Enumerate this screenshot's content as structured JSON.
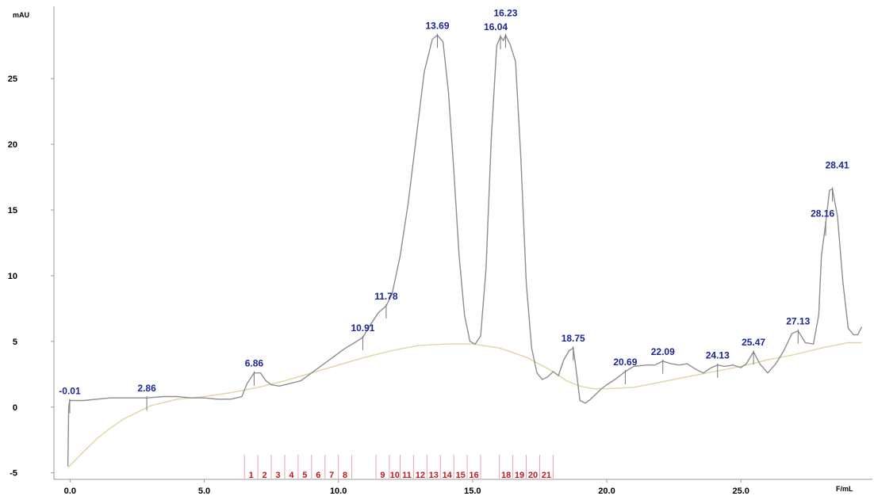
{
  "chart_data": {
    "type": "line",
    "title": "",
    "xlabel": "",
    "ylabel": "",
    "y_unit": "mAU",
    "x_unit": "F/mL",
    "xlim": [
      -0.6,
      29.9
    ],
    "ylim": [
      -5.5,
      30.5
    ],
    "x_ticks": [
      {
        "value": 0.0,
        "label": "0.0"
      },
      {
        "value": 5.0,
        "label": "5.0"
      },
      {
        "value": 10.0,
        "label": "10.0"
      },
      {
        "value": 15.0,
        "label": "15.0"
      },
      {
        "value": 20.0,
        "label": "20.0"
      },
      {
        "value": 25.0,
        "label": "25.0"
      }
    ],
    "y_ticks": [
      {
        "value": -5,
        "label": "-5"
      },
      {
        "value": 0,
        "label": "0"
      },
      {
        "value": 5,
        "label": "5"
      },
      {
        "value": 10,
        "label": "10"
      },
      {
        "value": 15,
        "label": "15"
      },
      {
        "value": 20,
        "label": "20"
      },
      {
        "value": 25,
        "label": "25"
      }
    ],
    "grid": false,
    "colors": {
      "signal": "#8e8e8e",
      "baseline": "#e2d3a4",
      "peak_label": "#1c2596",
      "fraction": "#c0181e",
      "axis": "#9a9a9a"
    },
    "series": [
      {
        "role": "signal",
        "x": [
          -0.08,
          -0.05,
          -0.01,
          0.5,
          1.0,
          1.5,
          2.0,
          2.5,
          2.86,
          3.5,
          4.0,
          4.5,
          5.0,
          5.5,
          6.0,
          6.4,
          6.6,
          6.86,
          7.1,
          7.3,
          7.5,
          7.8,
          8.2,
          8.6,
          9.0,
          9.4,
          9.8,
          10.2,
          10.6,
          10.91,
          11.2,
          11.5,
          11.78,
          12.0,
          12.3,
          12.6,
          12.9,
          13.2,
          13.5,
          13.69,
          13.9,
          14.1,
          14.3,
          14.5,
          14.7,
          14.9,
          15.1,
          15.3,
          15.5,
          15.7,
          15.9,
          16.04,
          16.15,
          16.23,
          16.4,
          16.6,
          16.8,
          17.0,
          17.2,
          17.4,
          17.6,
          17.8,
          18.0,
          18.2,
          18.4,
          18.6,
          18.75,
          18.85,
          19.0,
          19.2,
          19.4,
          19.6,
          19.8,
          20.0,
          20.3,
          20.69,
          21.0,
          21.5,
          21.8,
          22.09,
          22.4,
          22.7,
          23.0,
          23.3,
          23.6,
          23.9,
          24.13,
          24.4,
          24.7,
          25.0,
          25.2,
          25.47,
          25.7,
          26.0,
          26.3,
          26.6,
          26.9,
          27.13,
          27.4,
          27.7,
          27.9,
          28.0,
          28.16,
          28.3,
          28.41,
          28.6,
          28.8,
          29.0,
          29.2,
          29.35,
          29.5
        ],
        "values": [
          -4.5,
          0.0,
          0.5,
          0.5,
          0.6,
          0.7,
          0.7,
          0.7,
          0.7,
          0.8,
          0.8,
          0.7,
          0.7,
          0.6,
          0.6,
          0.8,
          1.8,
          2.6,
          2.6,
          2.0,
          1.7,
          1.6,
          1.8,
          2.0,
          2.6,
          3.2,
          3.8,
          4.4,
          4.9,
          5.3,
          6.3,
          7.2,
          7.7,
          8.6,
          11.5,
          15.5,
          20.5,
          25.5,
          28.0,
          28.3,
          27.8,
          24.0,
          18.0,
          11.5,
          7.0,
          5.0,
          4.8,
          5.4,
          10.5,
          20.5,
          27.5,
          28.2,
          27.9,
          28.3,
          27.6,
          26.3,
          19.0,
          9.5,
          4.5,
          2.6,
          2.1,
          2.3,
          2.7,
          2.4,
          3.6,
          4.3,
          4.5,
          3.0,
          0.5,
          0.3,
          0.6,
          1.0,
          1.4,
          1.7,
          2.1,
          2.7,
          3.1,
          3.2,
          3.2,
          3.5,
          3.3,
          3.2,
          3.3,
          2.9,
          2.6,
          3.0,
          3.2,
          3.1,
          3.2,
          3.0,
          3.3,
          4.2,
          3.3,
          2.6,
          3.3,
          4.3,
          5.6,
          5.8,
          4.9,
          4.8,
          7.0,
          11.5,
          14.0,
          16.5,
          16.6,
          14.5,
          9.5,
          6.0,
          5.5,
          5.5,
          6.1
        ]
      },
      {
        "role": "baseline",
        "x": [
          -0.08,
          0.5,
          1.0,
          1.5,
          2.0,
          3.0,
          4.0,
          5.0,
          6.0,
          7.0,
          8.0,
          9.0,
          10.0,
          11.0,
          12.0,
          13.0,
          14.0,
          15.0,
          16.0,
          17.0,
          18.0,
          18.5,
          19.0,
          19.5,
          20.0,
          21.0,
          22.0,
          23.0,
          24.0,
          25.0,
          26.0,
          27.0,
          28.0,
          29.0,
          29.5
        ],
        "values": [
          -4.6,
          -3.4,
          -2.4,
          -1.6,
          -0.9,
          0.1,
          0.6,
          0.8,
          1.1,
          1.5,
          2.0,
          2.6,
          3.2,
          3.8,
          4.3,
          4.7,
          4.8,
          4.8,
          4.5,
          3.8,
          2.7,
          2.0,
          1.6,
          1.4,
          1.4,
          1.5,
          1.9,
          2.3,
          2.7,
          3.1,
          3.6,
          4.0,
          4.5,
          4.9,
          4.9
        ]
      }
    ],
    "peak_labels": [
      {
        "x": -0.01,
        "y": 0.5,
        "label": "-0.01"
      },
      {
        "x": 2.86,
        "y": 0.7,
        "label": "2.86"
      },
      {
        "x": 6.86,
        "y": 2.6,
        "label": "6.86"
      },
      {
        "x": 10.91,
        "y": 5.3,
        "label": "10.91"
      },
      {
        "x": 11.78,
        "y": 7.7,
        "label": "11.78"
      },
      {
        "x": 13.69,
        "y": 28.3,
        "label": "13.69"
      },
      {
        "x": 16.23,
        "y": 28.3,
        "label": "16.23"
      },
      {
        "x": 16.04,
        "y": 28.2,
        "label": "16.04"
      },
      {
        "x": 18.75,
        "y": 4.5,
        "label": "18.75"
      },
      {
        "x": 20.69,
        "y": 2.7,
        "label": "20.69"
      },
      {
        "x": 22.09,
        "y": 3.5,
        "label": "22.09"
      },
      {
        "x": 24.13,
        "y": 3.2,
        "label": "24.13"
      },
      {
        "x": 25.47,
        "y": 4.2,
        "label": "25.47"
      },
      {
        "x": 27.13,
        "y": 5.8,
        "label": "27.13"
      },
      {
        "x": 28.41,
        "y": 16.6,
        "label": "28.41"
      },
      {
        "x": 28.16,
        "y": 14.0,
        "label": "28.16"
      }
    ],
    "fractions": {
      "boundaries": [
        6.5,
        7.0,
        7.5,
        8.0,
        8.5,
        9.0,
        9.5,
        10.0,
        10.5,
        11.4,
        11.9,
        12.3,
        12.8,
        13.3,
        13.8,
        14.3,
        14.8,
        15.3,
        16.0,
        16.5,
        17.0,
        17.5,
        18.0
      ],
      "labels": [
        {
          "x": 6.75,
          "label": "1"
        },
        {
          "x": 7.25,
          "label": "2"
        },
        {
          "x": 7.75,
          "label": "3"
        },
        {
          "x": 8.25,
          "label": "4"
        },
        {
          "x": 8.75,
          "label": "5"
        },
        {
          "x": 9.25,
          "label": "6"
        },
        {
          "x": 9.75,
          "label": "7"
        },
        {
          "x": 10.25,
          "label": "8"
        },
        {
          "x": 11.65,
          "label": "9"
        },
        {
          "x": 12.1,
          "label": "10"
        },
        {
          "x": 12.55,
          "label": "11"
        },
        {
          "x": 13.05,
          "label": "12"
        },
        {
          "x": 13.55,
          "label": "13"
        },
        {
          "x": 14.05,
          "label": "14"
        },
        {
          "x": 14.55,
          "label": "15"
        },
        {
          "x": 15.05,
          "label": "16"
        },
        {
          "x": 16.25,
          "label": "18"
        },
        {
          "x": 16.75,
          "label": "19"
        },
        {
          "x": 17.25,
          "label": "20"
        },
        {
          "x": 17.75,
          "label": "21"
        }
      ]
    }
  }
}
